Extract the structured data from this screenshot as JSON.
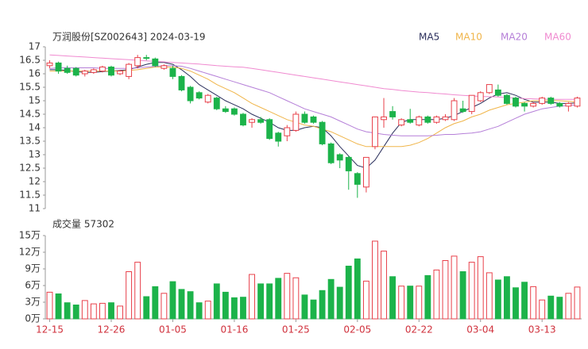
{
  "chart_data": [
    {
      "type": "candlestick",
      "title": "万润股份[SZ002643] 2024-03-19",
      "up_color": "#e8404a",
      "down_color": "#1cb34a",
      "open": [
        16.3,
        16.4,
        16.2,
        16.2,
        16.0,
        16.05,
        16.1,
        16.25,
        16.0,
        15.9,
        16.3,
        16.6,
        16.55,
        16.2,
        16.2,
        15.9,
        15.5,
        15.3,
        14.95,
        15.1,
        14.7,
        14.7,
        14.5,
        14.2,
        14.3,
        14.3,
        13.8,
        13.7,
        13.9,
        14.5,
        14.4,
        14.2,
        13.4,
        13.0,
        12.9,
        12.3,
        11.8,
        13.3,
        14.3,
        14.6,
        14.1,
        14.3,
        14.1,
        14.4,
        14.2,
        14.3,
        14.3,
        14.7,
        14.6,
        15.0,
        15.3,
        15.4,
        15.2,
        15.1,
        14.9,
        14.8,
        14.9,
        15.1,
        14.9,
        14.8,
        14.8
      ],
      "high": [
        16.5,
        16.45,
        16.3,
        16.25,
        16.15,
        16.2,
        16.3,
        16.3,
        16.15,
        16.4,
        16.7,
        16.7,
        16.6,
        16.35,
        16.3,
        15.95,
        15.55,
        15.35,
        15.25,
        15.15,
        14.8,
        14.75,
        14.55,
        14.35,
        14.4,
        14.35,
        13.85,
        14.1,
        14.6,
        14.6,
        14.45,
        14.25,
        13.45,
        13.05,
        12.95,
        12.35,
        12.9,
        14.4,
        15.1,
        14.8,
        14.35,
        14.7,
        14.45,
        14.45,
        14.45,
        14.5,
        15.1,
        15.0,
        15.2,
        15.35,
        15.6,
        15.6,
        15.25,
        15.15,
        14.95,
        14.95,
        15.15,
        15.15,
        14.95,
        14.95,
        15.15
      ],
      "low": [
        16.2,
        16.0,
        16.0,
        15.9,
        15.9,
        16.0,
        16.05,
        15.9,
        15.95,
        15.8,
        16.2,
        16.5,
        16.25,
        16.15,
        15.8,
        15.35,
        14.9,
        15.05,
        14.9,
        14.65,
        14.55,
        14.45,
        14.05,
        14.0,
        14.15,
        13.55,
        13.3,
        13.5,
        13.85,
        14.15,
        14.15,
        13.35,
        12.65,
        12.5,
        11.7,
        11.4,
        11.6,
        13.2,
        14.0,
        14.3,
        14.05,
        14.15,
        14.05,
        14.15,
        14.15,
        14.25,
        14.25,
        14.55,
        14.5,
        14.95,
        15.25,
        15.15,
        14.85,
        14.75,
        14.6,
        14.75,
        14.85,
        14.85,
        14.75,
        14.6,
        14.75
      ],
      "close": [
        16.4,
        16.1,
        16.05,
        15.95,
        16.1,
        16.15,
        16.25,
        15.95,
        16.1,
        16.35,
        16.6,
        16.58,
        16.3,
        16.3,
        15.9,
        15.4,
        15.0,
        15.1,
        15.2,
        14.7,
        14.6,
        14.5,
        14.1,
        14.3,
        14.2,
        13.6,
        13.5,
        14.0,
        14.5,
        14.2,
        14.2,
        13.4,
        12.7,
        12.8,
        12.4,
        11.9,
        12.9,
        14.4,
        14.4,
        14.4,
        14.3,
        14.2,
        14.4,
        14.2,
        14.4,
        14.4,
        15.0,
        14.6,
        15.2,
        15.3,
        15.6,
        15.2,
        14.9,
        14.8,
        14.8,
        14.9,
        15.1,
        14.9,
        14.8,
        14.9,
        15.1
      ],
      "ma": [
        {
          "name": "MA5",
          "color": "#2b2f5c",
          "values": [
            16.15,
            16.15,
            16.12,
            16.08,
            16.05,
            16.05,
            16.08,
            16.1,
            16.12,
            16.15,
            16.25,
            16.35,
            16.42,
            16.42,
            16.35,
            16.15,
            15.9,
            15.6,
            15.4,
            15.2,
            15.0,
            14.85,
            14.7,
            14.5,
            14.35,
            14.2,
            14.0,
            13.9,
            13.9,
            14.0,
            14.05,
            14.0,
            13.7,
            13.3,
            12.95,
            12.6,
            12.5,
            12.8,
            13.3,
            13.8,
            14.2,
            14.3,
            14.3,
            14.3,
            14.3,
            14.35,
            14.45,
            14.6,
            14.75,
            14.9,
            15.1,
            15.25,
            15.3,
            15.2,
            15.05,
            14.95,
            14.95,
            14.95,
            14.9,
            14.9,
            14.92
          ]
        },
        {
          "name": "MA10",
          "color": "#f0b54a",
          "values": [
            16.1,
            16.1,
            16.1,
            16.1,
            16.1,
            16.1,
            16.1,
            16.1,
            16.1,
            16.12,
            16.15,
            16.2,
            16.25,
            16.25,
            16.25,
            16.2,
            16.1,
            15.95,
            15.8,
            15.6,
            15.45,
            15.3,
            15.1,
            14.9,
            14.75,
            14.6,
            14.45,
            14.3,
            14.2,
            14.1,
            14.05,
            13.95,
            13.85,
            13.7,
            13.55,
            13.4,
            13.3,
            13.3,
            13.3,
            13.3,
            13.3,
            13.35,
            13.45,
            13.6,
            13.8,
            14.0,
            14.15,
            14.25,
            14.4,
            14.5,
            14.65,
            14.75,
            14.85,
            14.9,
            14.95,
            15.0,
            15.0,
            15.0,
            15.0,
            14.98,
            14.95
          ]
        },
        {
          "name": "MA20",
          "color": "#b57fd8",
          "values": [
            16.2,
            16.22,
            16.22,
            16.22,
            16.22,
            16.22,
            16.2,
            16.2,
            16.2,
            16.2,
            16.22,
            16.25,
            16.27,
            16.3,
            16.3,
            16.28,
            16.2,
            16.1,
            16.0,
            15.9,
            15.8,
            15.7,
            15.6,
            15.5,
            15.4,
            15.3,
            15.15,
            15.0,
            14.85,
            14.7,
            14.6,
            14.5,
            14.4,
            14.25,
            14.1,
            13.95,
            13.85,
            13.8,
            13.75,
            13.72,
            13.7,
            13.7,
            13.7,
            13.7,
            13.72,
            13.75,
            13.75,
            13.78,
            13.8,
            13.85,
            13.95,
            14.05,
            14.2,
            14.35,
            14.5,
            14.6,
            14.7,
            14.75,
            14.8,
            14.82,
            14.85
          ]
        },
        {
          "name": "MA60",
          "color": "#f08ad0",
          "values": [
            16.7,
            16.68,
            16.66,
            16.64,
            16.62,
            16.6,
            16.58,
            16.56,
            16.54,
            16.52,
            16.5,
            16.48,
            16.46,
            16.44,
            16.42,
            16.4,
            16.38,
            16.36,
            16.33,
            16.3,
            16.28,
            16.26,
            16.24,
            16.2,
            16.15,
            16.1,
            16.05,
            16.0,
            15.95,
            15.9,
            15.85,
            15.8,
            15.75,
            15.7,
            15.65,
            15.6,
            15.55,
            15.5,
            15.45,
            15.42,
            15.38,
            15.35,
            15.32,
            15.3,
            15.27,
            15.25,
            15.22,
            15.2,
            15.18,
            15.16,
            15.15,
            15.14,
            15.12,
            15.1,
            15.08,
            15.07,
            15.06,
            15.05,
            15.05,
            15.05,
            15.05
          ]
        }
      ],
      "ylim": [
        11,
        17
      ],
      "yticks": [
        11,
        11.5,
        12,
        12.5,
        13,
        13.5,
        14,
        14.5,
        15,
        15.5,
        16,
        16.5,
        17
      ]
    },
    {
      "type": "bar",
      "title": "成交量 57302",
      "up_color": "#e8404a",
      "down_color": "#1cb34a",
      "axis_label_color": "#d0313c",
      "categories": [
        "12-15",
        null,
        null,
        null,
        null,
        null,
        null,
        "12-26",
        null,
        null,
        null,
        null,
        null,
        null,
        "01-05",
        null,
        null,
        null,
        null,
        null,
        null,
        "01-16",
        null,
        null,
        null,
        null,
        null,
        null,
        "01-25",
        null,
        null,
        null,
        null,
        null,
        null,
        "02-05",
        null,
        null,
        null,
        null,
        null,
        null,
        "02-22",
        null,
        null,
        null,
        null,
        null,
        null,
        "03-04",
        null,
        null,
        null,
        null,
        null,
        null,
        "03-13",
        null,
        null,
        null,
        null
      ],
      "values": [
        4.8,
        4.5,
        2.9,
        2.5,
        3.3,
        2.7,
        2.8,
        2.9,
        2.3,
        8.5,
        10.2,
        4.0,
        5.8,
        4.6,
        6.7,
        5.3,
        4.9,
        2.9,
        3.2,
        6.3,
        4.8,
        3.8,
        3.9,
        8.0,
        6.3,
        6.3,
        7.3,
        8.2,
        7.4,
        4.3,
        3.4,
        5.1,
        7.1,
        5.7,
        9.5,
        10.8,
        6.8,
        14.0,
        12.2,
        7.6,
        5.9,
        5.9,
        5.9,
        7.8,
        8.8,
        10.5,
        11.3,
        8.5,
        10.2,
        11.2,
        8.3,
        7.0,
        7.6,
        5.6,
        6.6,
        5.8,
        3.4,
        4.1,
        3.9,
        4.6,
        5.7302
      ],
      "ylim": [
        0,
        15
      ],
      "yticks": [
        {
          "value": 0,
          "label": "0万"
        },
        {
          "value": 3,
          "label": "3万"
        },
        {
          "value": 6,
          "label": "6万"
        },
        {
          "value": 9,
          "label": "9万"
        },
        {
          "value": 12,
          "label": "12万"
        },
        {
          "value": 15,
          "label": "15万"
        }
      ]
    }
  ]
}
